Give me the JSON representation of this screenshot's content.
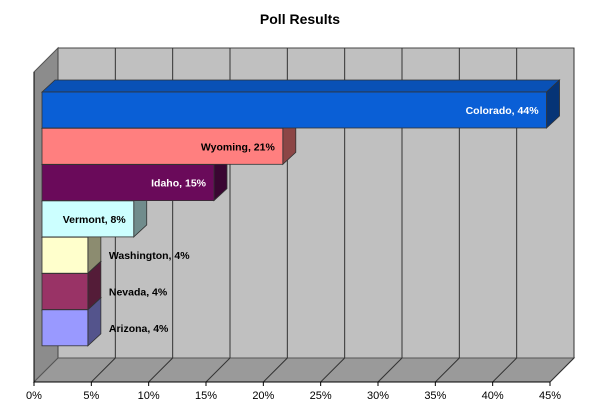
{
  "chart_data": {
    "type": "bar",
    "orientation": "horizontal",
    "style": "3d",
    "title": "Poll Results",
    "xlabel": "",
    "ylabel": "",
    "xlim": [
      0,
      45
    ],
    "x_ticks": [
      "0%",
      "5%",
      "10%",
      "15%",
      "20%",
      "25%",
      "30%",
      "35%",
      "40%",
      "45%"
    ],
    "grid": true,
    "legend": "none",
    "categories": [
      "Colorado",
      "Wyoming",
      "Idaho",
      "Vermont",
      "Washington",
      "Nevada",
      "Arizona"
    ],
    "values": [
      44,
      21,
      15,
      8,
      4,
      4,
      4
    ],
    "data_labels": [
      "Colorado, 44%",
      "Wyoming, 21%",
      "Idaho, 15%",
      "Vermont, 8%",
      "Washington, 4%",
      "Nevada, 4%",
      "Arizona, 4%"
    ],
    "colors": [
      "#0a5fd6",
      "#ff7f7f",
      "#6a0a5a",
      "#ccffff",
      "#ffffcc",
      "#993366",
      "#9999ff"
    ],
    "wall_color": "#c0c0c0",
    "floor_color": "#9a9a9a"
  }
}
